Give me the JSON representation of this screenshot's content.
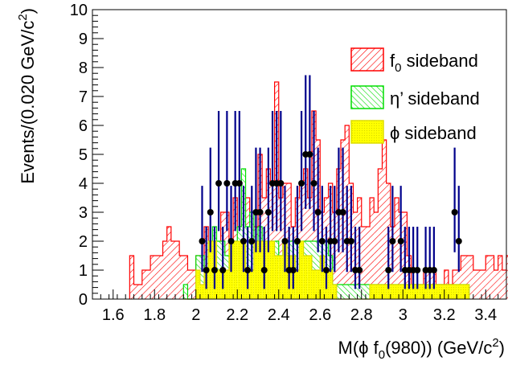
{
  "chart_data": {
    "type": "histogram",
    "xlabel_parts": [
      "M(",
      "ϕ",
      " f",
      "0",
      "(980)) (GeV/c",
      "2",
      ")"
    ],
    "ylabel_parts": [
      "Events/(0.020 GeV/c",
      "2",
      ")"
    ],
    "xlim": [
      1.5,
      3.5
    ],
    "ylim": [
      0,
      10
    ],
    "bin_width": 0.02,
    "x_ticks": [
      1.6,
      1.8,
      2,
      2.2,
      2.4,
      2.6,
      2.8,
      3,
      3.2,
      3.4
    ],
    "x_tick_labels": [
      "1.6",
      "1.8",
      "2",
      "2.2",
      "2.4",
      "2.6",
      "2.8",
      "3",
      "3.2",
      "3.4"
    ],
    "y_ticks": [
      0,
      1,
      2,
      3,
      4,
      5,
      6,
      7,
      8,
      9,
      10
    ],
    "y_tick_labels": [
      "0",
      "1",
      "2",
      "3",
      "4",
      "5",
      "6",
      "7",
      "8",
      "9",
      "10"
    ],
    "legend_position": "top-right",
    "legend": [
      {
        "name_parts": [
          "f",
          "0",
          " sideband"
        ],
        "fill": "#ffffff",
        "stroke": "#ff0000",
        "hatch": "#ff0000"
      },
      {
        "name_parts": [
          "η’ sideband",
          "",
          ""
        ],
        "fill": "#ffffff",
        "stroke": "#00dd00",
        "hatch": "#00dd00"
      },
      {
        "name_parts": [
          "ϕ sideband",
          "",
          ""
        ],
        "fill": "#ffff00",
        "stroke": "#dddd00",
        "hatch": "#dddd00"
      }
    ],
    "series": [
      {
        "name": "f0 sideband",
        "color": "#ff0000",
        "x_start": 1.68,
        "values": [
          1.5,
          0.5,
          0.5,
          1,
          1,
          1.5,
          1.5,
          1.5,
          2,
          2.5,
          2,
          2,
          1.5,
          1.5,
          1,
          1,
          1.5,
          1,
          2.5,
          2,
          1.5,
          1.5,
          3,
          3,
          2,
          3.5,
          2.5,
          3.5,
          3.5,
          3,
          2.5,
          5,
          3.5,
          4.5,
          4,
          7.5,
          3.5,
          4,
          4,
          2.5,
          3.5,
          4,
          4.5,
          3.5,
          6.5,
          5.5,
          3,
          3.5,
          4,
          3,
          4.5,
          5.5,
          6,
          4,
          3,
          3.5,
          2.5,
          2.5,
          3.5,
          3,
          4.5,
          5.5,
          4,
          2.5,
          3.5,
          3,
          3,
          1.5,
          0.5,
          0.5,
          0.5,
          1,
          1,
          1,
          0.5,
          0.5,
          1,
          0.5,
          1,
          1,
          1.5,
          1.5,
          1.5,
          1,
          1,
          1,
          1.5,
          1.5,
          1,
          1.5,
          1,
          1.5,
          1.5,
          0.5,
          0.5,
          0.5,
          0.5,
          0,
          0,
          0,
          0.5
        ]
      },
      {
        "name": "η’ sideband",
        "color": "#00dd00",
        "x_start": 1.94,
        "values": [
          0.5,
          0,
          0,
          1.5,
          1.5,
          1,
          2,
          2.5,
          2,
          2,
          1.5,
          1.5,
          2,
          2.5,
          4.5,
          2.5,
          3,
          2,
          2.5,
          2,
          2,
          2,
          2,
          1.5,
          2,
          2,
          2,
          2,
          2,
          2,
          2,
          2,
          2,
          2,
          2,
          1.5,
          0.5,
          0.5,
          0.5,
          0.5,
          0.5,
          0.5,
          0.5,
          0.5,
          0.5,
          0.5,
          0.5,
          0.5,
          0.5,
          0.5,
          0.5,
          0.5,
          0.5,
          0.5,
          0.5,
          0.5,
          0.5,
          0.5,
          0.5,
          0.5,
          0.5,
          0.5,
          0.5,
          0.5,
          0.5,
          0.5,
          0.5,
          0.5,
          0.5
        ]
      },
      {
        "name": "ϕ sideband",
        "color": "#dddd00",
        "x_start": 1.94,
        "values": [
          0,
          0,
          0,
          1,
          0.5,
          1,
          2,
          2,
          1,
          1,
          1,
          2,
          2,
          2,
          2,
          1,
          1,
          2,
          2,
          2,
          2,
          2,
          1.5,
          1.5,
          2,
          1.5,
          1.5,
          1,
          2,
          1.5,
          1.5,
          1,
          1,
          1.5,
          1,
          1,
          0.5,
          0,
          0,
          0,
          0,
          0,
          0,
          0,
          0,
          0.5,
          0.5,
          0.5,
          0.5,
          0.5,
          0.5,
          0.5,
          0.5,
          0.5,
          0.5,
          0.5,
          0.5,
          0.5,
          0.5,
          0.5,
          0.5,
          0.5,
          0.5,
          0.5,
          0.5,
          0.5,
          0.5,
          0.5,
          0.5
        ]
      }
    ],
    "data_points": {
      "name": "data",
      "marker_color": "#000000",
      "error_color": "#00008b",
      "points": [
        [
          2.03,
          2
        ],
        [
          2.05,
          1
        ],
        [
          2.07,
          3
        ],
        [
          2.09,
          1
        ],
        [
          2.11,
          4
        ],
        [
          2.13,
          1
        ],
        [
          2.15,
          4
        ],
        [
          2.17,
          2
        ],
        [
          2.19,
          4
        ],
        [
          2.21,
          4
        ],
        [
          2.23,
          2
        ],
        [
          2.25,
          1
        ],
        [
          2.27,
          2
        ],
        [
          2.29,
          3
        ],
        [
          2.31,
          3
        ],
        [
          2.33,
          1
        ],
        [
          2.35,
          3
        ],
        [
          2.37,
          4
        ],
        [
          2.39,
          4
        ],
        [
          2.41,
          4
        ],
        [
          2.43,
          2
        ],
        [
          2.45,
          1
        ],
        [
          2.47,
          1
        ],
        [
          2.49,
          2
        ],
        [
          2.51,
          4
        ],
        [
          2.53,
          5
        ],
        [
          2.55,
          5
        ],
        [
          2.57,
          4
        ],
        [
          2.59,
          3
        ],
        [
          2.61,
          2
        ],
        [
          2.63,
          1
        ],
        [
          2.65,
          2
        ],
        [
          2.67,
          2
        ],
        [
          2.69,
          3
        ],
        [
          2.71,
          3
        ],
        [
          2.73,
          2
        ],
        [
          2.75,
          2
        ],
        [
          2.77,
          1
        ],
        [
          2.79,
          1
        ],
        [
          2.93,
          1
        ],
        [
          2.95,
          2
        ],
        [
          2.99,
          2
        ],
        [
          3.01,
          1
        ],
        [
          3.03,
          1
        ],
        [
          3.05,
          1
        ],
        [
          3.07,
          1
        ],
        [
          3.11,
          1
        ],
        [
          3.13,
          1
        ],
        [
          3.15,
          1
        ],
        [
          3.25,
          3
        ],
        [
          3.27,
          2
        ]
      ]
    }
  }
}
